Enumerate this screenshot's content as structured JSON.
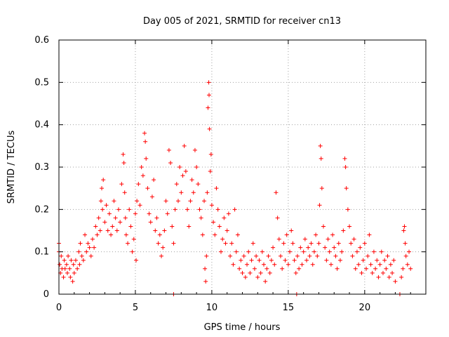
{
  "chart_data": {
    "type": "scatter",
    "title": "Day 005 of 2021, SRMTID for receiver cn13",
    "xlabel": "GPS time / hours",
    "ylabel": "SRMTID / TECUs",
    "xlim": [
      0,
      24
    ],
    "ylim": [
      0,
      0.6
    ],
    "xticks": [
      0,
      5,
      10,
      15,
      20
    ],
    "yticks": [
      0,
      0.1,
      0.2,
      0.3,
      0.4,
      0.5,
      0.6
    ],
    "xtick_labels": [
      "0",
      "5",
      "10",
      "15",
      "20"
    ],
    "ytick_labels": [
      "0",
      "0.1",
      "0.2",
      "0.3",
      "0.4",
      "0.5",
      "0.6"
    ],
    "grid": true,
    "marker": "+",
    "color": "#ff0000",
    "series": [
      {
        "name": "SRMTID",
        "points": [
          [
            0.0,
            0.12
          ],
          [
            0.0,
            0.1
          ],
          [
            0.05,
            0.07
          ],
          [
            0.1,
            0.05
          ],
          [
            0.15,
            0.09
          ],
          [
            0.2,
            0.06
          ],
          [
            0.3,
            0.04
          ],
          [
            0.35,
            0.08
          ],
          [
            0.4,
            0.06
          ],
          [
            0.5,
            0.07
          ],
          [
            0.55,
            0.05
          ],
          [
            0.6,
            0.09
          ],
          [
            0.7,
            0.06
          ],
          [
            0.75,
            0.04
          ],
          [
            0.8,
            0.08
          ],
          [
            0.9,
            0.03
          ],
          [
            0.95,
            0.07
          ],
          [
            1.0,
            0.05
          ],
          [
            1.1,
            0.08
          ],
          [
            1.2,
            0.06
          ],
          [
            1.3,
            0.1
          ],
          [
            1.35,
            0.07
          ],
          [
            1.4,
            0.12
          ],
          [
            1.5,
            0.09
          ],
          [
            1.6,
            0.08
          ],
          [
            1.7,
            0.14
          ],
          [
            1.8,
            0.1
          ],
          [
            1.9,
            0.12
          ],
          [
            2.0,
            0.11
          ],
          [
            2.1,
            0.09
          ],
          [
            2.2,
            0.13
          ],
          [
            2.3,
            0.11
          ],
          [
            2.4,
            0.16
          ],
          [
            2.5,
            0.14
          ],
          [
            2.6,
            0.18
          ],
          [
            2.7,
            0.15
          ],
          [
            2.75,
            0.22
          ],
          [
            2.8,
            0.25
          ],
          [
            2.85,
            0.2
          ],
          [
            2.9,
            0.27
          ],
          [
            3.0,
            0.17
          ],
          [
            3.1,
            0.21
          ],
          [
            3.2,
            0.15
          ],
          [
            3.3,
            0.19
          ],
          [
            3.4,
            0.14
          ],
          [
            3.5,
            0.16
          ],
          [
            3.6,
            0.22
          ],
          [
            3.7,
            0.18
          ],
          [
            3.8,
            0.15
          ],
          [
            3.9,
            0.2
          ],
          [
            4.0,
            0.17
          ],
          [
            4.1,
            0.26
          ],
          [
            4.2,
            0.33
          ],
          [
            4.25,
            0.31
          ],
          [
            4.3,
            0.24
          ],
          [
            4.35,
            0.18
          ],
          [
            4.4,
            0.14
          ],
          [
            4.5,
            0.12
          ],
          [
            4.6,
            0.2
          ],
          [
            4.7,
            0.16
          ],
          [
            4.8,
            0.1
          ],
          [
            4.9,
            0.13
          ],
          [
            5.0,
            0.19
          ],
          [
            5.05,
            0.08
          ],
          [
            5.1,
            0.22
          ],
          [
            5.2,
            0.26
          ],
          [
            5.3,
            0.21
          ],
          [
            5.4,
            0.3
          ],
          [
            5.5,
            0.28
          ],
          [
            5.6,
            0.38
          ],
          [
            5.65,
            0.36
          ],
          [
            5.7,
            0.32
          ],
          [
            5.8,
            0.25
          ],
          [
            5.9,
            0.19
          ],
          [
            6.0,
            0.17
          ],
          [
            6.1,
            0.23
          ],
          [
            6.2,
            0.27
          ],
          [
            6.3,
            0.15
          ],
          [
            6.4,
            0.18
          ],
          [
            6.5,
            0.12
          ],
          [
            6.6,
            0.14
          ],
          [
            6.7,
            0.09
          ],
          [
            6.8,
            0.11
          ],
          [
            6.9,
            0.15
          ],
          [
            7.0,
            0.22
          ],
          [
            7.1,
            0.19
          ],
          [
            7.2,
            0.34
          ],
          [
            7.3,
            0.31
          ],
          [
            7.4,
            0.16
          ],
          [
            7.5,
            0.0
          ],
          [
            7.5,
            0.12
          ],
          [
            7.6,
            0.2
          ],
          [
            7.7,
            0.26
          ],
          [
            7.8,
            0.22
          ],
          [
            7.9,
            0.3
          ],
          [
            8.0,
            0.24
          ],
          [
            8.1,
            0.28
          ],
          [
            8.2,
            0.35
          ],
          [
            8.3,
            0.29
          ],
          [
            8.4,
            0.2
          ],
          [
            8.5,
            0.16
          ],
          [
            8.6,
            0.22
          ],
          [
            8.7,
            0.27
          ],
          [
            8.8,
            0.24
          ],
          [
            8.9,
            0.34
          ],
          [
            9.0,
            0.3
          ],
          [
            9.1,
            0.26
          ],
          [
            9.2,
            0.2
          ],
          [
            9.3,
            0.18
          ],
          [
            9.4,
            0.14
          ],
          [
            9.5,
            0.22
          ],
          [
            9.55,
            0.06
          ],
          [
            9.6,
            0.03
          ],
          [
            9.65,
            0.09
          ],
          [
            9.7,
            0.24
          ],
          [
            9.75,
            0.44
          ],
          [
            9.8,
            0.5
          ],
          [
            9.82,
            0.47
          ],
          [
            9.85,
            0.39
          ],
          [
            9.9,
            0.29
          ],
          [
            9.95,
            0.33
          ],
          [
            10.0,
            0.21
          ],
          [
            10.1,
            0.17
          ],
          [
            10.2,
            0.14
          ],
          [
            10.3,
            0.25
          ],
          [
            10.4,
            0.2
          ],
          [
            10.5,
            0.16
          ],
          [
            10.6,
            0.1
          ],
          [
            10.7,
            0.13
          ],
          [
            10.8,
            0.18
          ],
          [
            10.9,
            0.12
          ],
          [
            11.0,
            0.15
          ],
          [
            11.1,
            0.19
          ],
          [
            11.2,
            0.09
          ],
          [
            11.3,
            0.12
          ],
          [
            11.4,
            0.07
          ],
          [
            11.5,
            0.2
          ],
          [
            11.6,
            0.1
          ],
          [
            11.7,
            0.14
          ],
          [
            11.8,
            0.06
          ],
          [
            11.9,
            0.08
          ],
          [
            12.0,
            0.05
          ],
          [
            12.1,
            0.09
          ],
          [
            12.2,
            0.04
          ],
          [
            12.3,
            0.07
          ],
          [
            12.4,
            0.1
          ],
          [
            12.5,
            0.05
          ],
          [
            12.6,
            0.08
          ],
          [
            12.7,
            0.12
          ],
          [
            12.8,
            0.06
          ],
          [
            12.9,
            0.09
          ],
          [
            13.0,
            0.04
          ],
          [
            13.1,
            0.08
          ],
          [
            13.2,
            0.05
          ],
          [
            13.3,
            0.1
          ],
          [
            13.4,
            0.07
          ],
          [
            13.5,
            0.03
          ],
          [
            13.6,
            0.06
          ],
          [
            13.7,
            0.09
          ],
          [
            13.8,
            0.05
          ],
          [
            13.9,
            0.08
          ],
          [
            14.0,
            0.11
          ],
          [
            14.1,
            0.07
          ],
          [
            14.2,
            0.24
          ],
          [
            14.3,
            0.18
          ],
          [
            14.4,
            0.13
          ],
          [
            14.5,
            0.09
          ],
          [
            14.6,
            0.06
          ],
          [
            14.7,
            0.12
          ],
          [
            14.8,
            0.08
          ],
          [
            14.9,
            0.14
          ],
          [
            15.0,
            0.07
          ],
          [
            15.1,
            0.1
          ],
          [
            15.2,
            0.15
          ],
          [
            15.3,
            0.12
          ],
          [
            15.4,
            0.08
          ],
          [
            15.5,
            0.05
          ],
          [
            15.55,
            0.0
          ],
          [
            15.6,
            0.09
          ],
          [
            15.7,
            0.06
          ],
          [
            15.8,
            0.11
          ],
          [
            15.9,
            0.07
          ],
          [
            16.0,
            0.1
          ],
          [
            16.1,
            0.13
          ],
          [
            16.2,
            0.08
          ],
          [
            16.3,
            0.11
          ],
          [
            16.4,
            0.09
          ],
          [
            16.5,
            0.12
          ],
          [
            16.6,
            0.07
          ],
          [
            16.7,
            0.1
          ],
          [
            16.8,
            0.14
          ],
          [
            16.9,
            0.09
          ],
          [
            17.0,
            0.12
          ],
          [
            17.05,
            0.21
          ],
          [
            17.1,
            0.35
          ],
          [
            17.15,
            0.32
          ],
          [
            17.2,
            0.25
          ],
          [
            17.3,
            0.16
          ],
          [
            17.4,
            0.11
          ],
          [
            17.5,
            0.08
          ],
          [
            17.6,
            0.13
          ],
          [
            17.7,
            0.1
          ],
          [
            17.8,
            0.07
          ],
          [
            17.9,
            0.14
          ],
          [
            18.0,
            0.11
          ],
          [
            18.1,
            0.09
          ],
          [
            18.2,
            0.06
          ],
          [
            18.3,
            0.12
          ],
          [
            18.4,
            0.08
          ],
          [
            18.5,
            0.1
          ],
          [
            18.6,
            0.15
          ],
          [
            18.7,
            0.32
          ],
          [
            18.75,
            0.3
          ],
          [
            18.8,
            0.25
          ],
          [
            18.9,
            0.2
          ],
          [
            19.0,
            0.16
          ],
          [
            19.1,
            0.12
          ],
          [
            19.2,
            0.09
          ],
          [
            19.3,
            0.13
          ],
          [
            19.4,
            0.06
          ],
          [
            19.5,
            0.1
          ],
          [
            19.6,
            0.07
          ],
          [
            19.7,
            0.11
          ],
          [
            19.8,
            0.05
          ],
          [
            19.9,
            0.08
          ],
          [
            20.0,
            0.12
          ],
          [
            20.1,
            0.06
          ],
          [
            20.2,
            0.09
          ],
          [
            20.3,
            0.14
          ],
          [
            20.4,
            0.07
          ],
          [
            20.5,
            0.05
          ],
          [
            20.6,
            0.1
          ],
          [
            20.7,
            0.06
          ],
          [
            20.8,
            0.08
          ],
          [
            20.9,
            0.04
          ],
          [
            21.0,
            0.07
          ],
          [
            21.1,
            0.1
          ],
          [
            21.2,
            0.05
          ],
          [
            21.3,
            0.08
          ],
          [
            21.4,
            0.06
          ],
          [
            21.5,
            0.09
          ],
          [
            21.6,
            0.04
          ],
          [
            21.7,
            0.07
          ],
          [
            21.8,
            0.05
          ],
          [
            21.9,
            0.08
          ],
          [
            22.0,
            0.03
          ],
          [
            22.3,
            0.0
          ],
          [
            22.4,
            0.04
          ],
          [
            22.5,
            0.06
          ],
          [
            22.55,
            0.15
          ],
          [
            22.6,
            0.16
          ],
          [
            22.65,
            0.12
          ],
          [
            22.7,
            0.09
          ],
          [
            22.8,
            0.07
          ],
          [
            22.9,
            0.1
          ],
          [
            23.0,
            0.06
          ]
        ]
      }
    ]
  }
}
